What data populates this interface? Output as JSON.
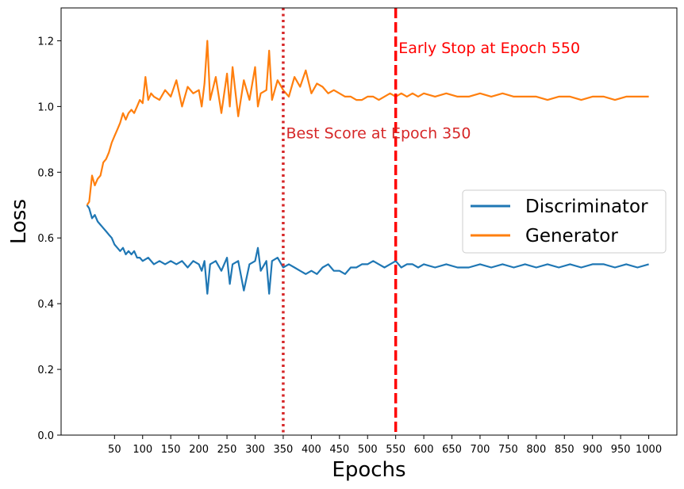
{
  "chart_data": {
    "type": "line",
    "xlabel": "Epochs",
    "ylabel": "Loss",
    "xlim": [
      -45,
      1050
    ],
    "ylim": [
      0.0,
      1.3
    ],
    "x_ticks": [
      50,
      100,
      150,
      200,
      250,
      300,
      350,
      400,
      450,
      500,
      550,
      600,
      650,
      700,
      750,
      800,
      850,
      900,
      950,
      1000
    ],
    "y_ticks": [
      0.0,
      0.2,
      0.4,
      0.6,
      0.8,
      1.0,
      1.2
    ],
    "y_tick_labels": [
      "0.0",
      "0.2",
      "0.4",
      "0.6",
      "0.8",
      "1.0",
      "1.2"
    ],
    "grid": false,
    "legend_position": "center-right",
    "series": [
      {
        "name": "Discriminator",
        "color": "#1f77b4",
        "x": [
          1,
          5,
          10,
          15,
          20,
          25,
          30,
          35,
          40,
          45,
          50,
          55,
          60,
          65,
          70,
          75,
          80,
          85,
          90,
          95,
          100,
          110,
          120,
          130,
          140,
          150,
          160,
          170,
          180,
          190,
          200,
          205,
          210,
          215,
          220,
          230,
          240,
          250,
          255,
          260,
          270,
          280,
          290,
          300,
          305,
          310,
          320,
          325,
          330,
          340,
          350,
          360,
          370,
          380,
          390,
          400,
          410,
          420,
          430,
          440,
          450,
          460,
          470,
          480,
          490,
          500,
          510,
          520,
          530,
          540,
          550,
          560,
          570,
          580,
          590,
          600,
          620,
          640,
          660,
          680,
          700,
          720,
          740,
          760,
          780,
          800,
          820,
          840,
          860,
          880,
          900,
          920,
          940,
          960,
          980,
          1000
        ],
        "values": [
          0.7,
          0.69,
          0.66,
          0.67,
          0.65,
          0.64,
          0.63,
          0.62,
          0.61,
          0.6,
          0.58,
          0.57,
          0.56,
          0.57,
          0.55,
          0.56,
          0.55,
          0.56,
          0.54,
          0.54,
          0.53,
          0.54,
          0.52,
          0.53,
          0.52,
          0.53,
          0.52,
          0.53,
          0.51,
          0.53,
          0.52,
          0.5,
          0.53,
          0.43,
          0.52,
          0.53,
          0.5,
          0.54,
          0.46,
          0.52,
          0.53,
          0.44,
          0.52,
          0.53,
          0.57,
          0.5,
          0.53,
          0.43,
          0.53,
          0.54,
          0.51,
          0.52,
          0.51,
          0.5,
          0.49,
          0.5,
          0.49,
          0.51,
          0.52,
          0.5,
          0.5,
          0.49,
          0.51,
          0.51,
          0.52,
          0.52,
          0.53,
          0.52,
          0.51,
          0.52,
          0.53,
          0.51,
          0.52,
          0.52,
          0.51,
          0.52,
          0.51,
          0.52,
          0.51,
          0.51,
          0.52,
          0.51,
          0.52,
          0.51,
          0.52,
          0.51,
          0.52,
          0.51,
          0.52,
          0.51,
          0.52,
          0.52,
          0.51,
          0.52,
          0.51,
          0.52
        ]
      },
      {
        "name": "Generator",
        "color": "#ff7f0e",
        "x": [
          1,
          5,
          10,
          15,
          20,
          25,
          30,
          35,
          40,
          45,
          50,
          55,
          60,
          65,
          70,
          75,
          80,
          85,
          90,
          95,
          100,
          105,
          110,
          115,
          120,
          130,
          140,
          150,
          160,
          170,
          180,
          190,
          200,
          205,
          210,
          215,
          220,
          230,
          240,
          250,
          255,
          260,
          270,
          280,
          290,
          300,
          305,
          310,
          320,
          325,
          330,
          340,
          350,
          360,
          370,
          380,
          390,
          400,
          410,
          420,
          430,
          440,
          450,
          460,
          470,
          480,
          490,
          500,
          510,
          520,
          530,
          540,
          550,
          560,
          570,
          580,
          590,
          600,
          620,
          640,
          660,
          680,
          700,
          720,
          740,
          760,
          780,
          800,
          820,
          840,
          860,
          880,
          900,
          920,
          940,
          960,
          980,
          1000
        ],
        "values": [
          0.7,
          0.71,
          0.79,
          0.76,
          0.78,
          0.79,
          0.83,
          0.84,
          0.86,
          0.89,
          0.91,
          0.93,
          0.95,
          0.98,
          0.96,
          0.98,
          0.99,
          0.98,
          1.0,
          1.02,
          1.01,
          1.09,
          1.02,
          1.04,
          1.03,
          1.02,
          1.05,
          1.03,
          1.08,
          1.0,
          1.06,
          1.04,
          1.05,
          1.0,
          1.07,
          1.2,
          1.02,
          1.09,
          0.98,
          1.1,
          1.0,
          1.12,
          0.97,
          1.08,
          1.02,
          1.12,
          1.0,
          1.04,
          1.05,
          1.17,
          1.02,
          1.08,
          1.05,
          1.03,
          1.09,
          1.06,
          1.11,
          1.04,
          1.07,
          1.06,
          1.04,
          1.05,
          1.04,
          1.03,
          1.03,
          1.02,
          1.02,
          1.03,
          1.03,
          1.02,
          1.03,
          1.04,
          1.03,
          1.04,
          1.03,
          1.04,
          1.03,
          1.04,
          1.03,
          1.04,
          1.03,
          1.03,
          1.04,
          1.03,
          1.04,
          1.03,
          1.03,
          1.03,
          1.02,
          1.03,
          1.03,
          1.02,
          1.03,
          1.03,
          1.02,
          1.03,
          1.03,
          1.03
        ]
      }
    ],
    "vlines": [
      {
        "x": 350,
        "style": "dotted",
        "color": "#d62728",
        "label": "Best Score at Epoch 350"
      },
      {
        "x": 550,
        "style": "dashed",
        "color": "#ff0000",
        "label": "Early Stop at Epoch 550"
      }
    ],
    "annotations": [
      {
        "text": "Early Stop at Epoch 550",
        "x": 555,
        "y": 1.18,
        "color": "#ff0000"
      },
      {
        "text": "Best Score at Epoch 350",
        "x": 355,
        "y": 0.92,
        "color": "#d62728"
      }
    ]
  }
}
